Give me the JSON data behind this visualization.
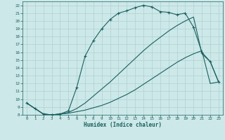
{
  "xlabel": "Humidex (Indice chaleur)",
  "bg_color": "#cde8e8",
  "grid_color": "#b0d0d0",
  "line_color": "#1a6060",
  "xlim": [
    -0.5,
    23.5
  ],
  "ylim": [
    8,
    22.5
  ],
  "xticks": [
    0,
    1,
    2,
    3,
    4,
    5,
    6,
    7,
    8,
    9,
    10,
    11,
    12,
    13,
    14,
    15,
    16,
    17,
    18,
    19,
    20,
    21,
    22,
    23
  ],
  "yticks": [
    8,
    9,
    10,
    11,
    12,
    13,
    14,
    15,
    16,
    17,
    18,
    19,
    20,
    21,
    22
  ],
  "line3_x": [
    0,
    1,
    2,
    3,
    4,
    5,
    6,
    7,
    8,
    9,
    10,
    11,
    12,
    13,
    14,
    15,
    16,
    17,
    18,
    19,
    20,
    21,
    22,
    23
  ],
  "line3_y": [
    9.5,
    8.8,
    8.1,
    8.0,
    8.1,
    8.5,
    11.5,
    15.5,
    17.5,
    19.0,
    20.2,
    21.0,
    21.3,
    21.7,
    22.0,
    21.8,
    21.2,
    21.1,
    20.8,
    21.0,
    19.2,
    16.0,
    14.8,
    12.2
  ],
  "line2_x": [
    0,
    1,
    2,
    3,
    4,
    5,
    6,
    7,
    8,
    9,
    10,
    11,
    12,
    13,
    14,
    15,
    16,
    17,
    18,
    19,
    20,
    21,
    22,
    23
  ],
  "line2_y": [
    9.5,
    8.8,
    8.1,
    8.0,
    8.1,
    8.3,
    8.8,
    9.5,
    10.4,
    11.3,
    12.2,
    13.2,
    14.2,
    15.2,
    16.2,
    17.1,
    17.9,
    18.7,
    19.4,
    20.0,
    20.5,
    15.8,
    14.8,
    12.2
  ],
  "line1_x": [
    0,
    1,
    2,
    3,
    4,
    5,
    6,
    7,
    8,
    9,
    10,
    11,
    12,
    13,
    14,
    15,
    16,
    17,
    18,
    19,
    20,
    21,
    22,
    23
  ],
  "line1_y": [
    9.5,
    8.8,
    8.1,
    8.0,
    8.1,
    8.2,
    8.4,
    8.6,
    8.9,
    9.2,
    9.6,
    10.1,
    10.6,
    11.2,
    11.9,
    12.6,
    13.3,
    14.0,
    14.7,
    15.3,
    15.8,
    16.2,
    12.0,
    12.2
  ]
}
